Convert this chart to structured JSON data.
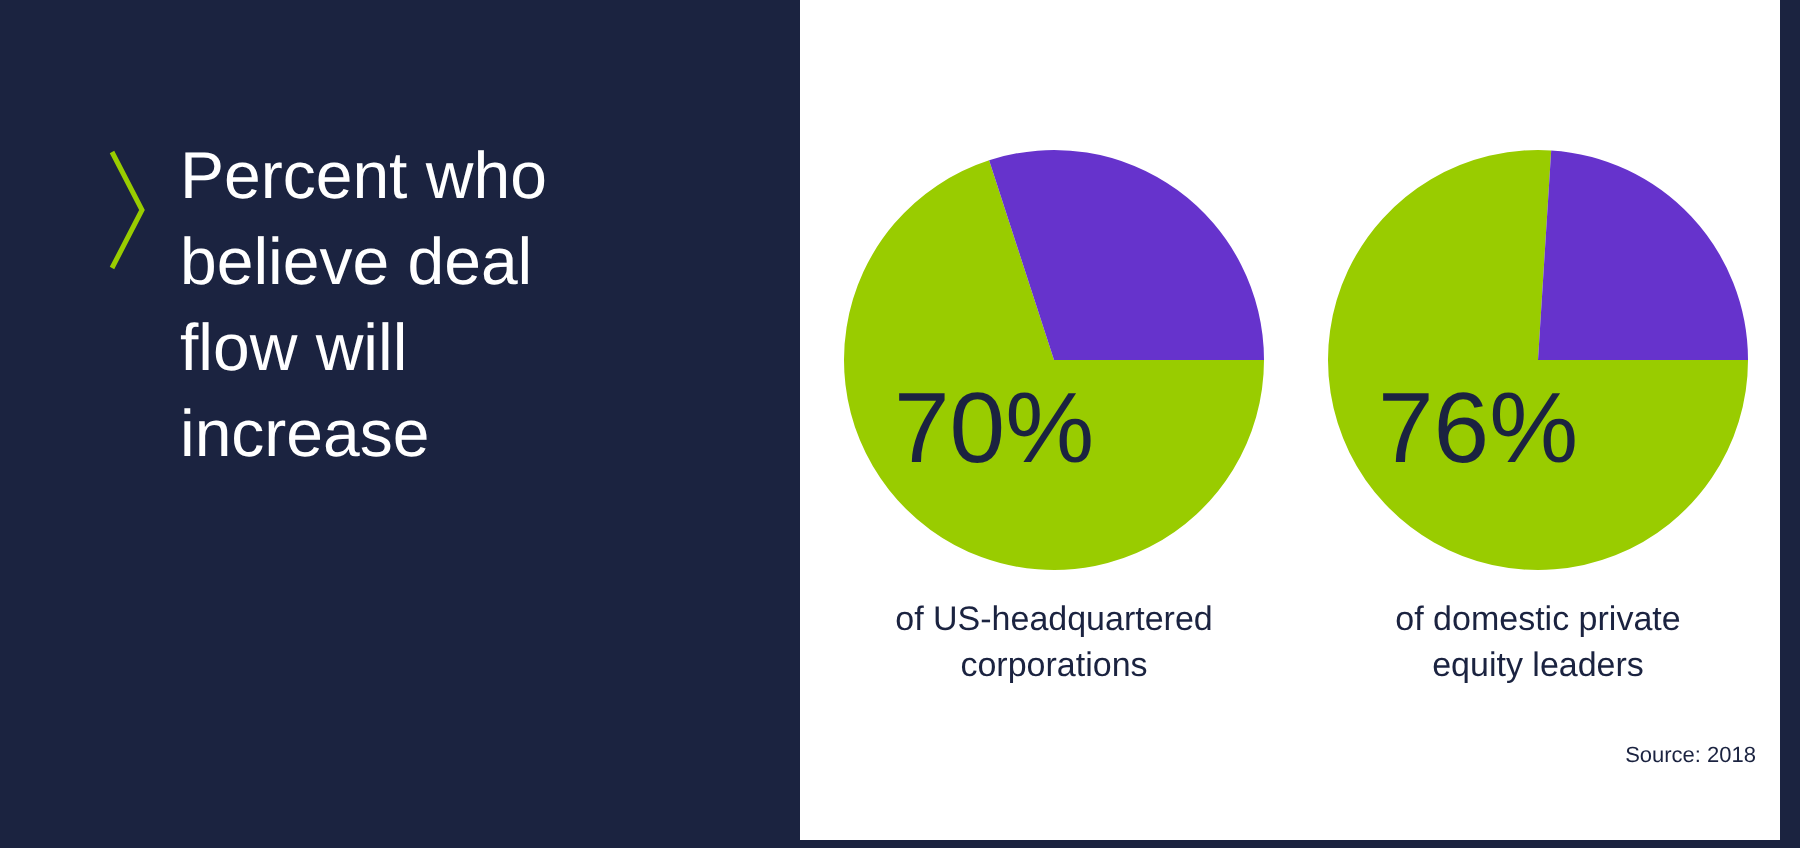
{
  "chart_data": [
    {
      "type": "pie",
      "title": "Percent who believe deal flow will increase",
      "xlabel": "of US-headquartered corporations",
      "categories": [
        null,
        null
      ],
      "values": [
        70,
        30
      ],
      "colors": [
        "#99cc00",
        "#6633cc"
      ],
      "value_labels": [
        "70%",
        null
      ],
      "legend": false
    },
    {
      "type": "pie",
      "xlabel": "of domestic private equity leaders",
      "categories": [
        null,
        null
      ],
      "values": [
        76,
        24
      ],
      "colors": [
        "#99cc00",
        "#6633cc"
      ],
      "value_labels": [
        "76%",
        null
      ],
      "legend": false,
      "annotations": [
        "Source: 2018"
      ]
    }
  ]
}
